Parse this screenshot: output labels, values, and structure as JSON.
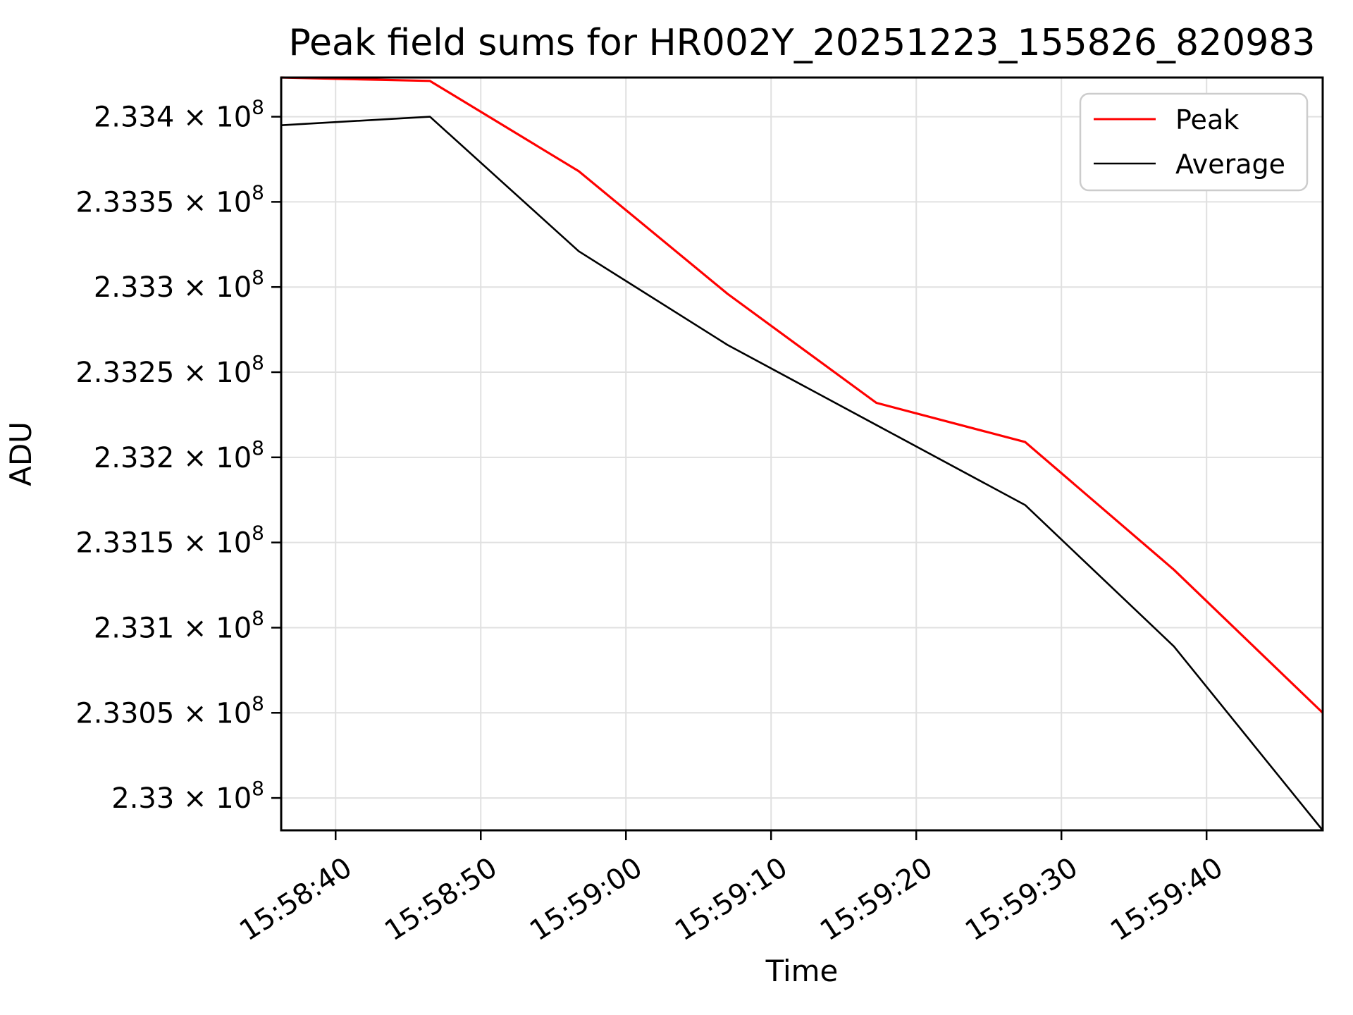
{
  "figure": {
    "title": "Peak field sums for HR002Y_20251223_155826_820983",
    "xlabel": "Time",
    "ylabel": "ADU"
  },
  "legend": {
    "position": "upper right",
    "entries": [
      {
        "label": "Peak",
        "color": "#ff0000"
      },
      {
        "label": "Average",
        "color": "#000000"
      }
    ]
  },
  "colors": {
    "background": "#ffffff",
    "grid": "#e0e0e0",
    "spine": "#000000",
    "legend_border": "#cccccc",
    "peak_line": "#ff0000",
    "average_line": "#000000"
  },
  "chart_data": {
    "type": "line",
    "title": "Peak field sums for HR002Y_20251223_155826_820983",
    "xlabel": "Time",
    "ylabel": "ADU",
    "grid": true,
    "legend_position": "upper right",
    "x_labels": [
      "15:58:36",
      "15:58:46",
      "15:58:57",
      "15:59:07",
      "15:59:17",
      "15:59:28",
      "15:59:38",
      "15:59:48"
    ],
    "x_seconds": [
      36.25,
      46.5,
      56.75,
      67.0,
      77.25,
      87.5,
      97.75,
      108.0
    ],
    "series": [
      {
        "name": "Peak",
        "color": "#ff0000",
        "values": [
          233423000,
          233421000,
          233368000,
          233296000,
          233232000,
          233209000,
          233134000,
          233050000
        ]
      },
      {
        "name": "Average",
        "color": "#000000",
        "values": [
          233395000,
          233400000,
          233321000,
          233266000,
          233219000,
          233172000,
          233089000,
          232981000
        ]
      }
    ],
    "xlim_seconds": [
      36.25,
      108.0
    ],
    "ylim": [
      232981000,
      233423000
    ],
    "xticks": [
      {
        "seconds": 40,
        "label": "15:58:40"
      },
      {
        "seconds": 50,
        "label": "15:58:50"
      },
      {
        "seconds": 60,
        "label": "15:59:00"
      },
      {
        "seconds": 70,
        "label": "15:59:10"
      },
      {
        "seconds": 80,
        "label": "15:59:20"
      },
      {
        "seconds": 90,
        "label": "15:59:30"
      },
      {
        "seconds": 100,
        "label": "15:59:40"
      }
    ],
    "yticks": [
      {
        "value": 233400000,
        "label": "2.334 × 10",
        "sup": "8"
      },
      {
        "value": 233350000,
        "label": "2.3335 × 10",
        "sup": "8"
      },
      {
        "value": 233300000,
        "label": "2.333 × 10",
        "sup": "8"
      },
      {
        "value": 233250000,
        "label": "2.3325 × 10",
        "sup": "8"
      },
      {
        "value": 233200000,
        "label": "2.332 × 10",
        "sup": "8"
      },
      {
        "value": 233150000,
        "label": "2.3315 × 10",
        "sup": "8"
      },
      {
        "value": 233100000,
        "label": "2.331 × 10",
        "sup": "8"
      },
      {
        "value": 233050000,
        "label": "2.3305 × 10",
        "sup": "8"
      },
      {
        "value": 233000000,
        "label": "2.33 × 10",
        "sup": "8"
      }
    ]
  }
}
